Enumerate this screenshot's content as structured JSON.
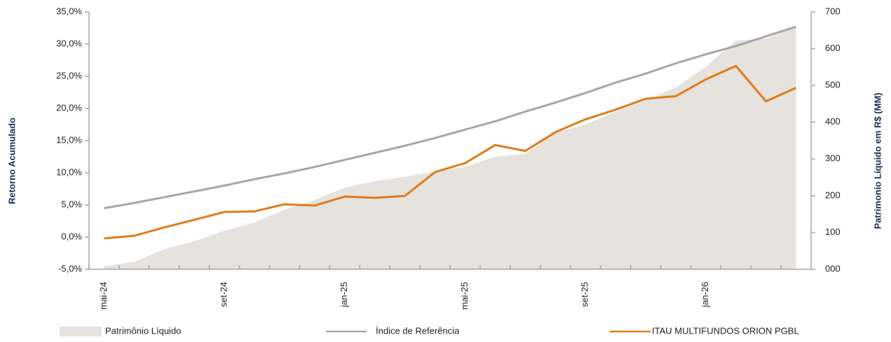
{
  "chart_data": {
    "type": "line",
    "y_label": "Retorno Acumulado",
    "y2_label": "Patrimonio Líquido em R$ (MM)",
    "categories": [
      "mai-24",
      null,
      null,
      null,
      "set-24",
      null,
      null,
      null,
      "jan-25",
      null,
      null,
      null,
      "mai-25",
      null,
      null,
      null,
      "set-25",
      null,
      null,
      null,
      "jan-26",
      null,
      null,
      null
    ],
    "ylim": [
      -5,
      35
    ],
    "yticks": [
      {
        "value": -5,
        "label": "-5,0%"
      },
      {
        "value": 0,
        "label": "0,0%"
      },
      {
        "value": 5,
        "label": "5,0%"
      },
      {
        "value": 10,
        "label": "10,0%"
      },
      {
        "value": 15,
        "label": "15,0%"
      },
      {
        "value": 20,
        "label": "20,0%"
      },
      {
        "value": 25,
        "label": "25,0%"
      },
      {
        "value": 30,
        "label": "30,0%"
      },
      {
        "value": 35,
        "label": "35,0%"
      }
    ],
    "y2lim": [
      0,
      700
    ],
    "y2ticks": [
      {
        "value": 0,
        "label": "000"
      },
      100,
      200,
      300,
      400,
      500,
      600,
      700
    ],
    "series": [
      {
        "name": "Patrimônio Líquido",
        "type": "area",
        "axis": "y2",
        "color": "#e6e2dd",
        "values": [
          8,
          20,
          55,
          76,
          105,
          127,
          162,
          188,
          222,
          240,
          251,
          266,
          279,
          306,
          314,
          371,
          394,
          428,
          460,
          494,
          551,
          622,
          627,
          660
        ]
      },
      {
        "name": "Índice de Referência",
        "type": "line",
        "color": "#a6a6a6",
        "values": [
          4.5,
          5.3,
          6.2,
          7.1,
          8.0,
          9.0,
          9.9,
          10.9,
          12.0,
          13.1,
          14.2,
          15.4,
          16.7,
          18.0,
          19.5,
          20.9,
          22.4,
          24.0,
          25.4,
          27.0,
          28.4,
          29.7,
          31.2,
          32.7
        ]
      },
      {
        "name": "ITAU MULTIFUNDOS ORION PGBL",
        "type": "line",
        "color": "#e07b1a",
        "values": [
          -0.2,
          0.2,
          1.5,
          2.7,
          3.9,
          4.0,
          5.1,
          4.9,
          6.3,
          6.1,
          6.4,
          10.1,
          11.5,
          14.3,
          13.4,
          16.3,
          18.3,
          19.8,
          21.5,
          21.9,
          24.5,
          26.6,
          21.1,
          23.2
        ]
      }
    ]
  }
}
